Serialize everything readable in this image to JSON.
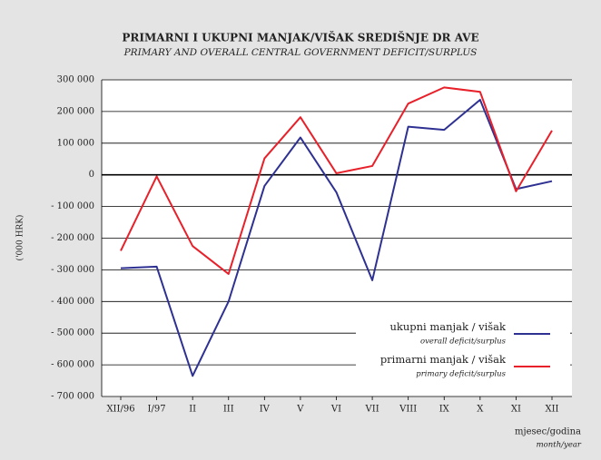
{
  "chart_data": {
    "type": "line",
    "title": "PRIMARNI I UKUPNI MANJAK/VIŠAK SREDIŠNJE DR AVE",
    "subtitle": "PRIMARY AND OVERALL CENTRAL GOVERNMENT DEFICIT/SURPLUS",
    "y_label": "('000 HRK)",
    "x_label": "mjesec/godina",
    "x_label_en": "month/year",
    "categories": [
      "XII/96",
      "I/97",
      "II",
      "III",
      "IV",
      "V",
      "VI",
      "VII",
      "VIII",
      "IX",
      "X",
      "XI",
      "XII"
    ],
    "series": [
      {
        "name": "ukupni manjak / višak",
        "subname": "overall deficit/surplus",
        "color": "#2e3192",
        "values": [
          -295000,
          -290000,
          -635000,
          -400000,
          -35000,
          118000,
          -55000,
          -333000,
          152000,
          142000,
          237000,
          -45000,
          -20000
        ]
      },
      {
        "name": "primarni manjak / višak",
        "subname": "primary deficit/surplus",
        "color": "#e8202a",
        "values": [
          -240000,
          -5000,
          -225000,
          -313000,
          52000,
          182000,
          5000,
          28000,
          225000,
          276000,
          262000,
          -52000,
          140000
        ]
      }
    ],
    "ylim": [
      -700000,
      300000
    ],
    "yticks": [
      {
        "value": -700000,
        "label": "- 700 000"
      },
      {
        "value": -600000,
        "label": "- 600 000"
      },
      {
        "value": -500000,
        "label": "- 500 000"
      },
      {
        "value": -400000,
        "label": "- 400 000"
      },
      {
        "value": -300000,
        "label": "- 300 000"
      },
      {
        "value": -200000,
        "label": "- 200 000"
      },
      {
        "value": -100000,
        "label": "- 100 000"
      },
      0,
      {
        "value": 100000,
        "label": "100 000"
      },
      {
        "value": 200000,
        "label": "200 000"
      },
      {
        "value": 300000,
        "label": "300 000"
      }
    ],
    "grid": true,
    "legend": "lower right"
  }
}
